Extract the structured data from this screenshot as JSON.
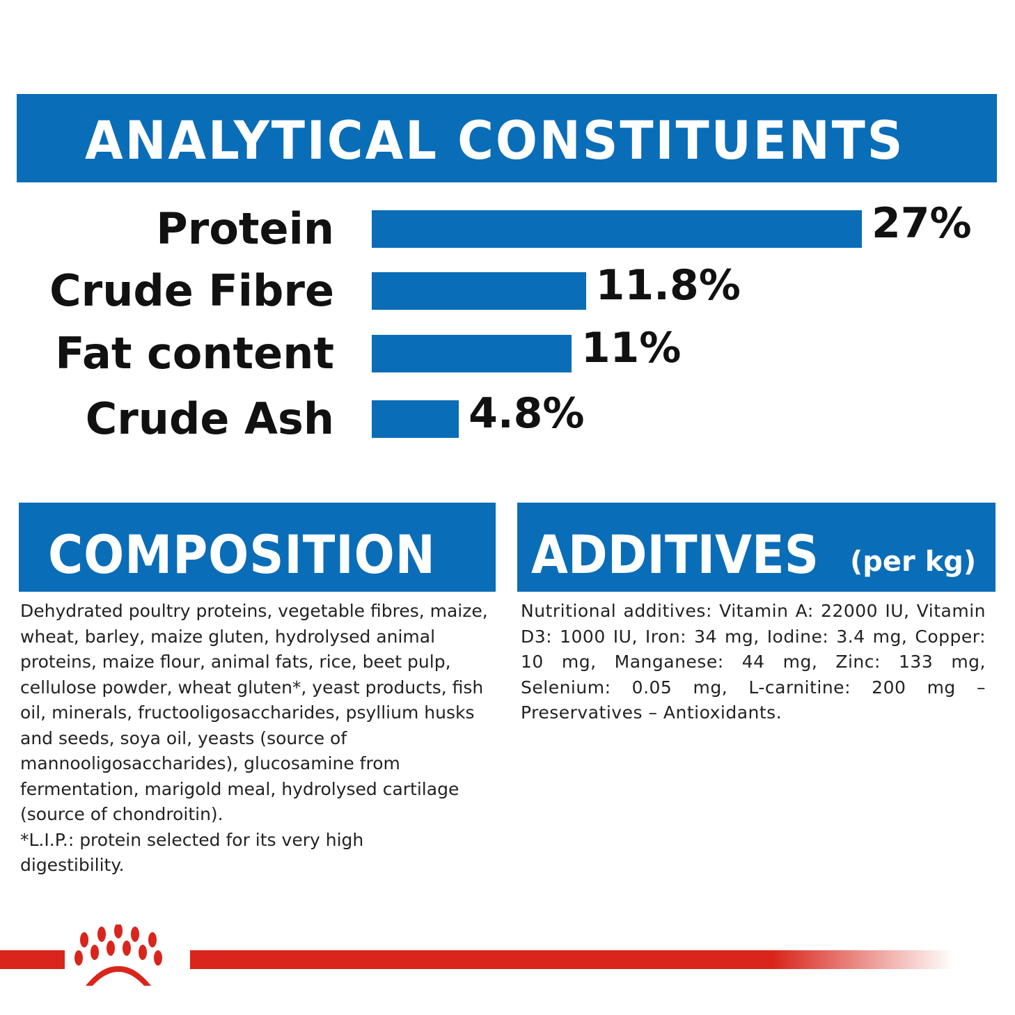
{
  "header": {
    "title": "ANALYTICAL CONSTITUENTS"
  },
  "chart_data": {
    "type": "bar",
    "orientation": "horizontal",
    "categories": [
      "Protein",
      "Crude Fibre",
      "Fat content",
      "Crude Ash"
    ],
    "values": [
      27,
      11.8,
      11,
      4.8
    ],
    "data_labels": [
      "27%",
      "11.8%",
      "11%",
      "4.8%"
    ],
    "unit": "%",
    "xlim": [
      0,
      27
    ],
    "grid": false,
    "bar_color": "#0a6db7"
  },
  "composition": {
    "title": "COMPOSITION",
    "lines": [
      "Dehydrated poultry proteins, vegetable fibres, maize,",
      "wheat, barley, maize gluten, hydrolysed animal",
      "proteins, maize flour, animal fats, rice, beet pulp,",
      "cellulose powder, wheat gluten*, yeast products, fish",
      "oil, minerals, fructooligosaccharides, psyllium husks",
      "and seeds, soya oil, yeasts (source of",
      "mannooligosaccharides), glucosamine from",
      "fermentation, marigold meal, hydrolysed cartilage",
      "(source of chondroitin).",
      "*L.I.P.: protein selected for its very high",
      "digestibility."
    ]
  },
  "additives": {
    "title": "ADDITIVES",
    "subtitle": "(per kg)",
    "text": "Nutritional additives: Vitamin A: 22000 IU, Vitamin D3: 1000 IU, Iron: 34 mg, Iodine: 3.4 mg, Copper: 10 mg, Manganese: 44 mg, Zinc: 133 mg, Selenium: 0.05 mg, L-carnitine: 200 mg – Preservatives – Antioxidants."
  },
  "colors": {
    "blue": "#0a6db7",
    "red": "#d9251c"
  },
  "footer": {
    "logo": "crown-paw-logo"
  }
}
